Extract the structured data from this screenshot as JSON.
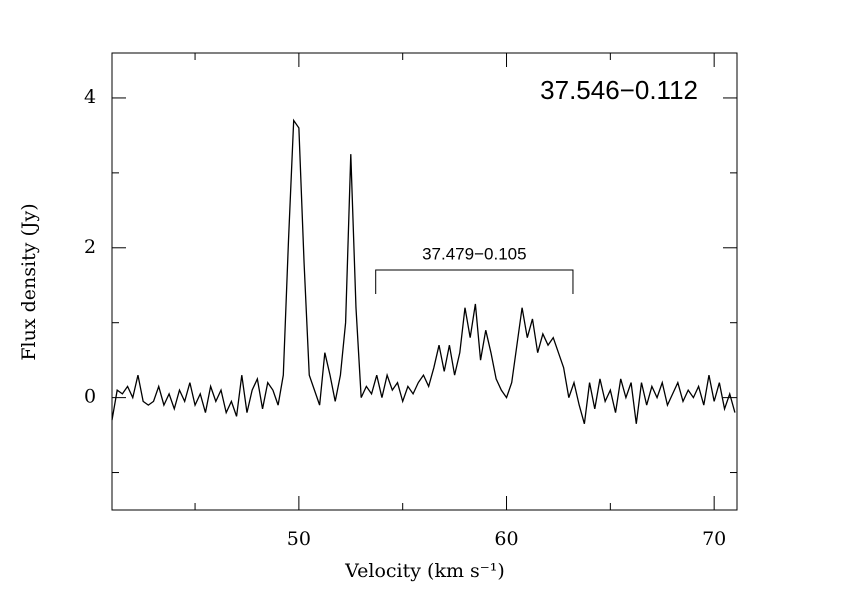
{
  "chart_data": {
    "type": "line",
    "title": "37.546−0.112",
    "xlabel": "Velocity (km s⁻¹)",
    "ylabel": "Flux density (Jy)",
    "color": "#000000",
    "xlim": [
      41,
      71.1
    ],
    "ylim": [
      -1.5,
      4.6
    ],
    "xticks": [
      50,
      60,
      70
    ],
    "yticks": [
      0,
      2,
      4
    ],
    "xminorticks": [
      45,
      55,
      65
    ],
    "yminorticks": [
      -1,
      1,
      3
    ],
    "annotations": [
      {
        "text": "37.479−0.105",
        "range": [
          53.7,
          63.2
        ]
      }
    ],
    "x": [
      41,
      41.25,
      41.5,
      41.75,
      42,
      42.25,
      42.5,
      42.75,
      43,
      43.25,
      43.5,
      43.75,
      44,
      44.25,
      44.5,
      44.75,
      45,
      45.25,
      45.5,
      45.75,
      46,
      46.25,
      46.5,
      46.75,
      47,
      47.25,
      47.5,
      47.75,
      48,
      48.25,
      48.5,
      48.75,
      49,
      49.25,
      49.5,
      49.75,
      50,
      50.25,
      50.5,
      50.75,
      51,
      51.25,
      51.5,
      51.75,
      52,
      52.25,
      52.5,
      52.75,
      53,
      53.25,
      53.5,
      53.75,
      54,
      54.25,
      54.5,
      54.75,
      55,
      55.25,
      55.5,
      55.75,
      56,
      56.25,
      56.5,
      56.75,
      57,
      57.25,
      57.5,
      57.75,
      58,
      58.25,
      58.5,
      58.75,
      59,
      59.25,
      59.5,
      59.75,
      60,
      60.25,
      60.5,
      60.75,
      61,
      61.25,
      61.5,
      61.75,
      62,
      62.25,
      62.5,
      62.75,
      63,
      63.25,
      63.5,
      63.75,
      64,
      64.25,
      64.5,
      64.75,
      65,
      65.25,
      65.5,
      65.75,
      66,
      66.25,
      66.5,
      66.75,
      67,
      67.25,
      67.5,
      67.75,
      68,
      68.25,
      68.5,
      68.75,
      69,
      69.25,
      69.5,
      69.75,
      70,
      70.25,
      70.5,
      70.75,
      71
    ],
    "values": [
      -0.3,
      0.1,
      0.05,
      0.15,
      0,
      0.3,
      -0.05,
      -0.1,
      -0.05,
      0.15,
      -0.1,
      0.05,
      -0.15,
      0.1,
      -0.05,
      0.2,
      -0.1,
      0.05,
      -0.2,
      0.15,
      -0.05,
      0.1,
      -0.2,
      -0.05,
      -0.25,
      0.3,
      -0.2,
      0.1,
      0.25,
      -0.15,
      0.2,
      0.1,
      -0.1,
      0.3,
      2.1,
      3.7,
      3.6,
      1.8,
      0.3,
      0.1,
      -0.1,
      0.6,
      0.3,
      -0.05,
      0.3,
      1.0,
      3.25,
      1.2,
      0,
      0.15,
      0.05,
      0.3,
      0,
      0.3,
      0.1,
      0.2,
      -0.05,
      0.15,
      0.05,
      0.2,
      0.3,
      0.15,
      0.4,
      0.7,
      0.35,
      0.7,
      0.3,
      0.6,
      1.2,
      0.8,
      1.25,
      0.5,
      0.9,
      0.6,
      0.25,
      0.1,
      0,
      0.2,
      0.7,
      1.2,
      0.8,
      1.05,
      0.6,
      0.85,
      0.7,
      0.8,
      0.6,
      0.4,
      0,
      0.2,
      -0.1,
      -0.35,
      0.2,
      -0.15,
      0.25,
      -0.05,
      0.1,
      -0.2,
      0.25,
      0,
      0.2,
      -0.35,
      0.2,
      -0.1,
      0.15,
      0,
      0.2,
      -0.1,
      0.05,
      0.2,
      -0.05,
      0.1,
      0,
      0.15,
      -0.1,
      0.3,
      -0.05,
      0.2,
      -0.15,
      0.05,
      -0.2
    ]
  }
}
